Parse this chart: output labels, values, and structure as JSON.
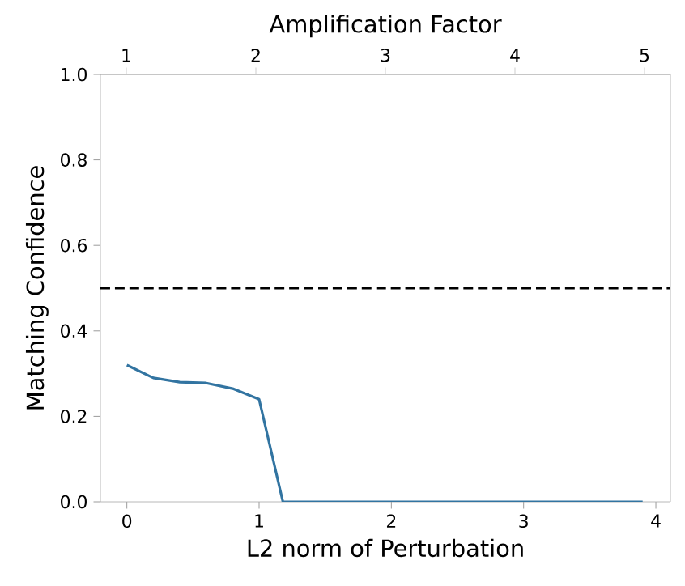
{
  "chart_data": {
    "type": "line",
    "xlabel": "L2 norm of Perturbation",
    "ylabel": "Matching Confidence",
    "x2label": "Amplification Factor",
    "x": [
      0,
      0.2,
      0.4,
      0.6,
      0.8,
      1.0,
      1.18,
      3.9
    ],
    "series": [
      {
        "color": "#3274a1",
        "values": [
          0.32,
          0.29,
          0.28,
          0.278,
          0.265,
          0.24,
          0,
          0
        ]
      }
    ],
    "xlim": [
      -0.2,
      4.11
    ],
    "xticks": [
      0,
      1,
      2,
      3,
      4
    ],
    "x2lim": [
      0.8,
      5.2
    ],
    "x2ticks": [
      1,
      2,
      3,
      4,
      5
    ],
    "ylim": [
      0,
      1.0
    ],
    "yticks": [
      {
        "value": 0,
        "label": "0.0"
      },
      0.2,
      0.4,
      0.6,
      0.8,
      {
        "value": 1,
        "label": "1.0"
      }
    ],
    "ref_lines": [
      {
        "axis": "y",
        "value": 0.5,
        "color": "#000000",
        "line_style": "dashed"
      }
    ],
    "grid": false,
    "marker": "none",
    "line_style": "solid"
  }
}
